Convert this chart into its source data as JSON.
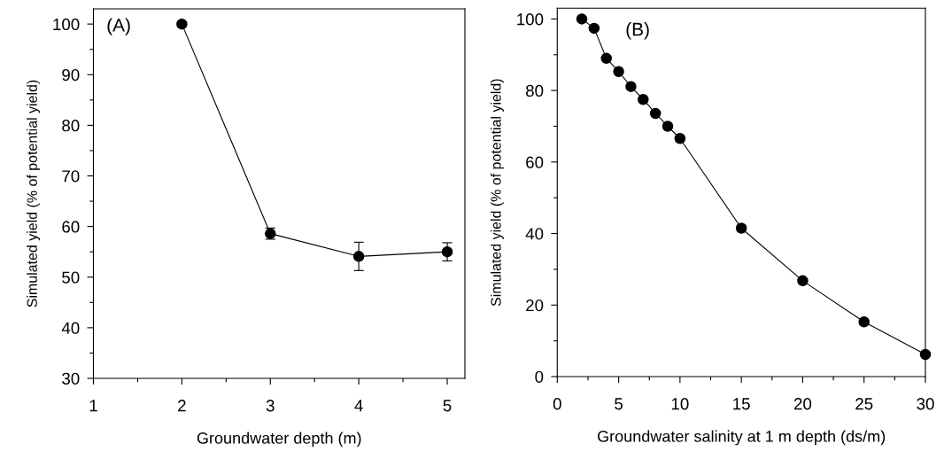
{
  "chart_data": [
    {
      "type": "line",
      "xlabel": "Groundwater depth (m)",
      "ylabel": "Simulated yield (% of potential yield)",
      "annotations": [
        "(A)"
      ],
      "x": [
        2,
        3,
        4,
        5
      ],
      "series": [
        {
          "color": "#000000",
          "values": [
            100,
            58.6,
            54.1,
            55.0
          ],
          "errors": [
            null,
            1.1,
            2.8,
            1.8
          ]
        }
      ],
      "xlim": [
        1,
        5.2
      ],
      "ylim": [
        30,
        103
      ],
      "xticks": [
        1,
        {
          "value": 1.5,
          "label": null
        },
        2,
        {
          "value": 2.5,
          "label": null
        },
        3,
        {
          "value": 3.5,
          "label": null
        },
        4,
        {
          "value": 4.5,
          "label": null
        },
        5
      ],
      "yticks": [
        30,
        {
          "value": 35,
          "label": null
        },
        40,
        {
          "value": 45,
          "label": null
        },
        50,
        {
          "value": 55,
          "label": null
        },
        60,
        {
          "value": 65,
          "label": null
        },
        70,
        {
          "value": 75,
          "label": null
        },
        80,
        {
          "value": 85,
          "label": null
        },
        90,
        {
          "value": 95,
          "label": null
        },
        100
      ],
      "marker": "circle",
      "line_style": "solid",
      "grid": false
    },
    {
      "type": "line",
      "xlabel": "Groundwater salinity at 1 m depth (ds/m)",
      "ylabel": "Simulated yield (% of potential yield)",
      "annotations": [
        "(B)"
      ],
      "x": [
        2,
        3,
        4,
        5,
        6,
        7,
        8,
        9,
        10,
        15,
        20,
        25,
        30
      ],
      "series": [
        {
          "color": "#000000",
          "values": [
            100,
            97.4,
            89.0,
            85.3,
            81.1,
            77.5,
            73.6,
            70.0,
            66.6,
            41.5,
            26.8,
            15.3,
            6.2
          ]
        }
      ],
      "xlim": [
        0,
        30
      ],
      "ylim": [
        0,
        103
      ],
      "xticks": [
        0,
        {
          "value": 2.5,
          "label": null
        },
        5,
        {
          "value": 7.5,
          "label": null
        },
        10,
        {
          "value": 12.5,
          "label": null
        },
        15,
        {
          "value": 17.5,
          "label": null
        },
        20,
        {
          "value": 22.5,
          "label": null
        },
        25,
        {
          "value": 27.5,
          "label": null
        },
        30
      ],
      "yticks": [
        0,
        {
          "value": 10,
          "label": null
        },
        20,
        {
          "value": 30,
          "label": null
        },
        40,
        {
          "value": 50,
          "label": null
        },
        60,
        {
          "value": 70,
          "label": null
        },
        80,
        {
          "value": 90,
          "label": null
        },
        100
      ],
      "marker": "circle",
      "line_style": "solid",
      "grid": false
    }
  ]
}
